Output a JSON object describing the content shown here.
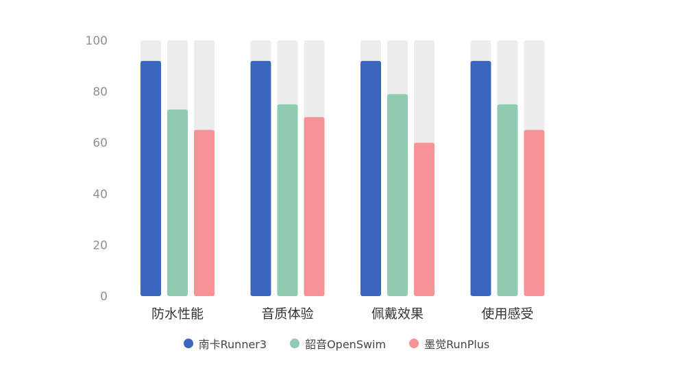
{
  "chart_data": {
    "type": "bar",
    "categories": [
      "防水性能",
      "音质体验",
      "佩戴效果",
      "使用感受"
    ],
    "series": [
      {
        "name": "南卡Runner3",
        "values": [
          92,
          92,
          92,
          92
        ],
        "color": "#3a66bf"
      },
      {
        "name": "韶音OpenSwim",
        "values": [
          73,
          75,
          79,
          75
        ],
        "color": "#8fcbb0"
      },
      {
        "name": "墨觉RunPlus",
        "values": [
          65,
          70,
          60,
          65
        ],
        "color": "#f79396"
      }
    ],
    "ylim": [
      0,
      100
    ],
    "yticks": [
      "0",
      "20",
      "40",
      "60",
      "80",
      "100"
    ],
    "background_bar_color": "#ececec",
    "grid": false,
    "legend_position": "bottom-center"
  }
}
